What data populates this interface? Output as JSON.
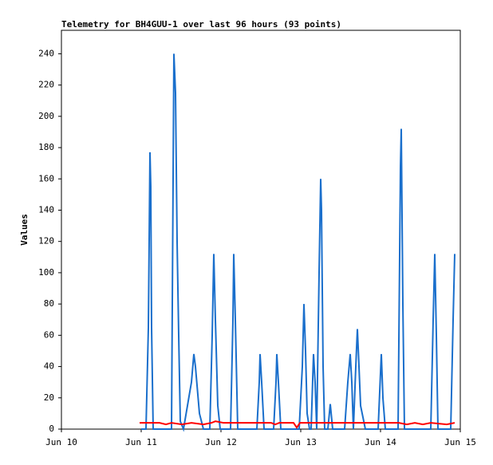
{
  "chart_data": {
    "type": "line",
    "title": "Telemetry for BH4GUU-1 over last 96 hours (93 points)",
    "y_label": "Values",
    "xlim": [
      10,
      15
    ],
    "xticks": [
      {
        "value": 10,
        "label": "Jun 10"
      },
      {
        "value": 11,
        "label": "Jun 11"
      },
      {
        "value": 12,
        "label": "Jun 12"
      },
      {
        "value": 13,
        "label": "Jun 13"
      },
      {
        "value": 14,
        "label": "Jun 14"
      },
      {
        "value": 15,
        "label": "Jun 15"
      }
    ],
    "ylim": [
      0,
      255
    ],
    "yticks": [
      0,
      20,
      40,
      60,
      80,
      100,
      120,
      140,
      160,
      180,
      200,
      220,
      240
    ],
    "grid": false,
    "series": [
      {
        "color": "#1a6fcc",
        "x": [
          11.0,
          11.06,
          11.09,
          11.11,
          11.12,
          11.13,
          11.15,
          11.38,
          11.41,
          11.43,
          11.45,
          11.47,
          11.49,
          11.53,
          11.63,
          11.66,
          11.68,
          11.73,
          11.78,
          11.86,
          11.89,
          11.91,
          11.93,
          11.96,
          11.99,
          12.12,
          12.15,
          12.16,
          12.18,
          12.21,
          12.45,
          12.48,
          12.49,
          12.51,
          12.54,
          12.66,
          12.69,
          12.7,
          12.72,
          12.75,
          12.98,
          13.02,
          13.04,
          13.06,
          13.08,
          13.11,
          13.13,
          13.16,
          13.18,
          13.2,
          13.23,
          13.25,
          13.26,
          13.28,
          13.3,
          13.34,
          13.37,
          13.4,
          13.55,
          13.59,
          13.62,
          13.64,
          13.66,
          13.69,
          13.71,
          13.73,
          13.75,
          13.81,
          13.97,
          14.01,
          14.03,
          14.06,
          14.22,
          14.25,
          14.26,
          14.28,
          14.3,
          14.63,
          14.66,
          14.68,
          14.7,
          14.72,
          14.88,
          14.91,
          14.93
        ],
        "values": [
          0,
          0,
          65,
          177,
          155,
          65,
          0,
          0,
          240,
          215,
          120,
          60,
          5,
          0,
          30,
          48,
          40,
          10,
          0,
          0,
          60,
          112,
          70,
          15,
          0,
          0,
          70,
          112,
          70,
          0,
          0,
          30,
          48,
          30,
          0,
          0,
          30,
          48,
          30,
          0,
          0,
          40,
          80,
          50,
          10,
          0,
          0,
          48,
          30,
          0,
          100,
          160,
          140,
          40,
          0,
          0,
          16,
          0,
          0,
          30,
          48,
          30,
          0,
          40,
          64,
          40,
          15,
          0,
          0,
          48,
          20,
          0,
          0,
          168,
          192,
          80,
          0,
          0,
          70,
          112,
          60,
          0,
          0,
          70,
          112
        ]
      },
      {
        "color": "#ff0000",
        "x": [
          10.98,
          11.23,
          11.31,
          11.38,
          11.51,
          11.63,
          11.78,
          11.88,
          11.93,
          12.03,
          12.63,
          12.68,
          12.73,
          12.91,
          12.95,
          12.99,
          13.43,
          13.63,
          14.23,
          14.33,
          14.43,
          14.53,
          14.63,
          14.83,
          14.93
        ],
        "values": [
          4,
          4,
          3,
          4,
          3,
          4,
          3,
          4,
          5,
          4,
          4,
          3,
          4,
          4,
          1,
          4,
          4,
          4,
          4,
          3,
          4,
          3,
          4,
          3,
          4
        ]
      }
    ]
  }
}
